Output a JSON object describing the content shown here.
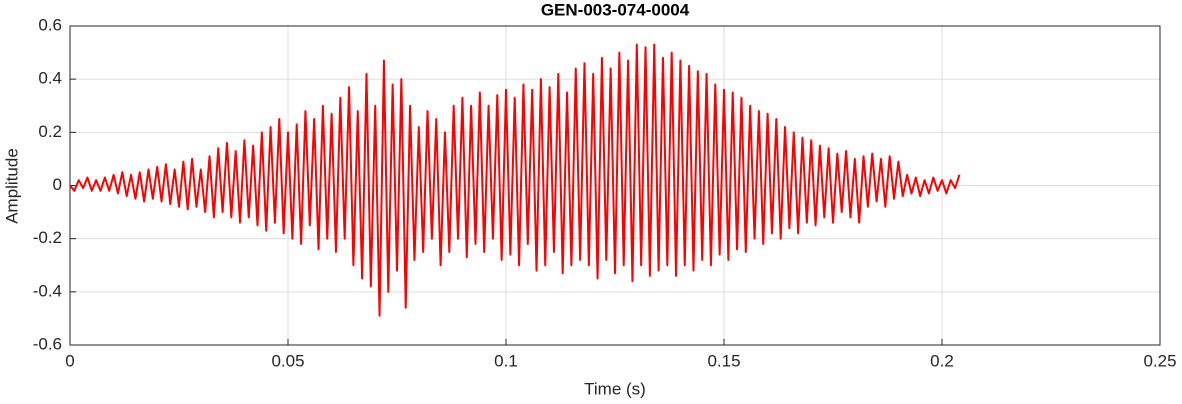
{
  "chart_data": {
    "type": "line",
    "title": "GEN-003-074-0004",
    "xlabel": "Time (s)",
    "ylabel": "Amplitude",
    "xlim": [
      0,
      0.25
    ],
    "xticks": [
      0,
      0.05,
      0.1,
      0.15,
      0.2,
      0.25
    ],
    "ylim": [
      -0.6,
      0.6
    ],
    "yticks": [
      -0.6,
      -0.4,
      -0.2,
      0,
      0.2,
      0.4,
      0.6
    ],
    "grid": true,
    "x": [
      0,
      0.001,
      0.002,
      0.003,
      0.004,
      0.005,
      0.006,
      0.007,
      0.008,
      0.009,
      0.01,
      0.011,
      0.012,
      0.013,
      0.014,
      0.015,
      0.016,
      0.017,
      0.018,
      0.019,
      0.02,
      0.021,
      0.022,
      0.023,
      0.024,
      0.025,
      0.026,
      0.027,
      0.028,
      0.029,
      0.03,
      0.031,
      0.032,
      0.033,
      0.034,
      0.035,
      0.036,
      0.037,
      0.038,
      0.039,
      0.04,
      0.041,
      0.042,
      0.043,
      0.044,
      0.045,
      0.046,
      0.047,
      0.048,
      0.049,
      0.05,
      0.051,
      0.052,
      0.053,
      0.054,
      0.055,
      0.056,
      0.057,
      0.058,
      0.059,
      0.06,
      0.061,
      0.062,
      0.063,
      0.064,
      0.065,
      0.066,
      0.067,
      0.068,
      0.069,
      0.07,
      0.071,
      0.072,
      0.073,
      0.074,
      0.075,
      0.076,
      0.077,
      0.078,
      0.079,
      0.08,
      0.081,
      0.082,
      0.083,
      0.084,
      0.085,
      0.086,
      0.087,
      0.088,
      0.089,
      0.09,
      0.091,
      0.092,
      0.093,
      0.094,
      0.095,
      0.096,
      0.097,
      0.098,
      0.099,
      0.1,
      0.101,
      0.102,
      0.103,
      0.104,
      0.105,
      0.106,
      0.107,
      0.108,
      0.109,
      0.11,
      0.111,
      0.112,
      0.113,
      0.114,
      0.115,
      0.116,
      0.117,
      0.118,
      0.119,
      0.12,
      0.121,
      0.122,
      0.123,
      0.124,
      0.125,
      0.126,
      0.127,
      0.128,
      0.129,
      0.13,
      0.131,
      0.132,
      0.133,
      0.134,
      0.135,
      0.136,
      0.137,
      0.138,
      0.139,
      0.14,
      0.141,
      0.142,
      0.143,
      0.144,
      0.145,
      0.146,
      0.147,
      0.148,
      0.149,
      0.15,
      0.151,
      0.152,
      0.153,
      0.154,
      0.155,
      0.156,
      0.157,
      0.158,
      0.159,
      0.16,
      0.161,
      0.162,
      0.163,
      0.164,
      0.165,
      0.166,
      0.167,
      0.168,
      0.169,
      0.17,
      0.171,
      0.172,
      0.173,
      0.174,
      0.175,
      0.176,
      0.177,
      0.178,
      0.179,
      0.18,
      0.181,
      0.182,
      0.183,
      0.184,
      0.185,
      0.186,
      0.187,
      0.188,
      0.189,
      0.19,
      0.191,
      0.192,
      0.193,
      0.194,
      0.195,
      0.196,
      0.197,
      0.198,
      0.199,
      0.2,
      0.201,
      0.202,
      0.203,
      0.204
    ],
    "series": [
      {
        "color": "#ff0000",
        "values": [
          0,
          -0.02,
          0.02,
          -0.01,
          0.03,
          -0.02,
          0.02,
          -0.02,
          0.03,
          -0.02,
          0.04,
          -0.03,
          0.05,
          -0.04,
          0.04,
          -0.05,
          0.05,
          -0.06,
          0.06,
          -0.05,
          0.07,
          -0.06,
          0.08,
          -0.07,
          0.06,
          -0.08,
          0.09,
          -0.09,
          0.1,
          -0.08,
          0.06,
          -0.1,
          0.11,
          -0.12,
          0.14,
          -0.1,
          0.16,
          -0.12,
          0.13,
          -0.14,
          0.17,
          -0.12,
          0.15,
          -0.15,
          0.2,
          -0.17,
          0.22,
          -0.14,
          0.25,
          -0.18,
          0.2,
          -0.2,
          0.23,
          -0.22,
          0.28,
          -0.15,
          0.25,
          -0.24,
          0.3,
          -0.2,
          0.27,
          -0.25,
          0.33,
          -0.2,
          0.37,
          -0.3,
          0.28,
          -0.35,
          0.42,
          -0.38,
          0.3,
          -0.49,
          0.47,
          -0.4,
          0.38,
          -0.32,
          0.4,
          -0.46,
          0.3,
          -0.28,
          0.22,
          -0.25,
          0.28,
          -0.2,
          0.25,
          -0.3,
          0.2,
          -0.25,
          0.3,
          -0.2,
          0.33,
          -0.27,
          0.3,
          -0.22,
          0.35,
          -0.25,
          0.3,
          -0.2,
          0.34,
          -0.28,
          0.36,
          -0.26,
          0.33,
          -0.3,
          0.38,
          -0.22,
          0.36,
          -0.32,
          0.4,
          -0.3,
          0.37,
          -0.25,
          0.42,
          -0.33,
          0.35,
          -0.3,
          0.44,
          -0.28,
          0.46,
          -0.3,
          0.42,
          -0.35,
          0.48,
          -0.28,
          0.44,
          -0.33,
          0.5,
          -0.3,
          0.47,
          -0.36,
          0.53,
          -0.3,
          0.52,
          -0.34,
          0.53,
          -0.32,
          0.48,
          -0.3,
          0.5,
          -0.34,
          0.47,
          -0.3,
          0.45,
          -0.32,
          0.43,
          -0.28,
          0.42,
          -0.3,
          0.38,
          -0.26,
          0.36,
          -0.28,
          0.35,
          -0.24,
          0.33,
          -0.25,
          0.3,
          -0.2,
          0.28,
          -0.22,
          0.27,
          -0.18,
          0.25,
          -0.2,
          0.22,
          -0.16,
          0.2,
          -0.18,
          0.18,
          -0.14,
          0.17,
          -0.15,
          0.15,
          -0.12,
          0.14,
          -0.14,
          0.12,
          -0.1,
          0.13,
          -0.12,
          0.1,
          -0.14,
          0.11,
          -0.08,
          0.12,
          -0.06,
          0.1,
          -0.08,
          0.11,
          -0.05,
          0.09,
          -0.04,
          0.04,
          -0.03,
          0.03,
          -0.04,
          0.02,
          -0.03,
          0.03,
          -0.02,
          0.02,
          -0.03,
          0.02,
          -0.01,
          0.04
        ]
      }
    ]
  }
}
